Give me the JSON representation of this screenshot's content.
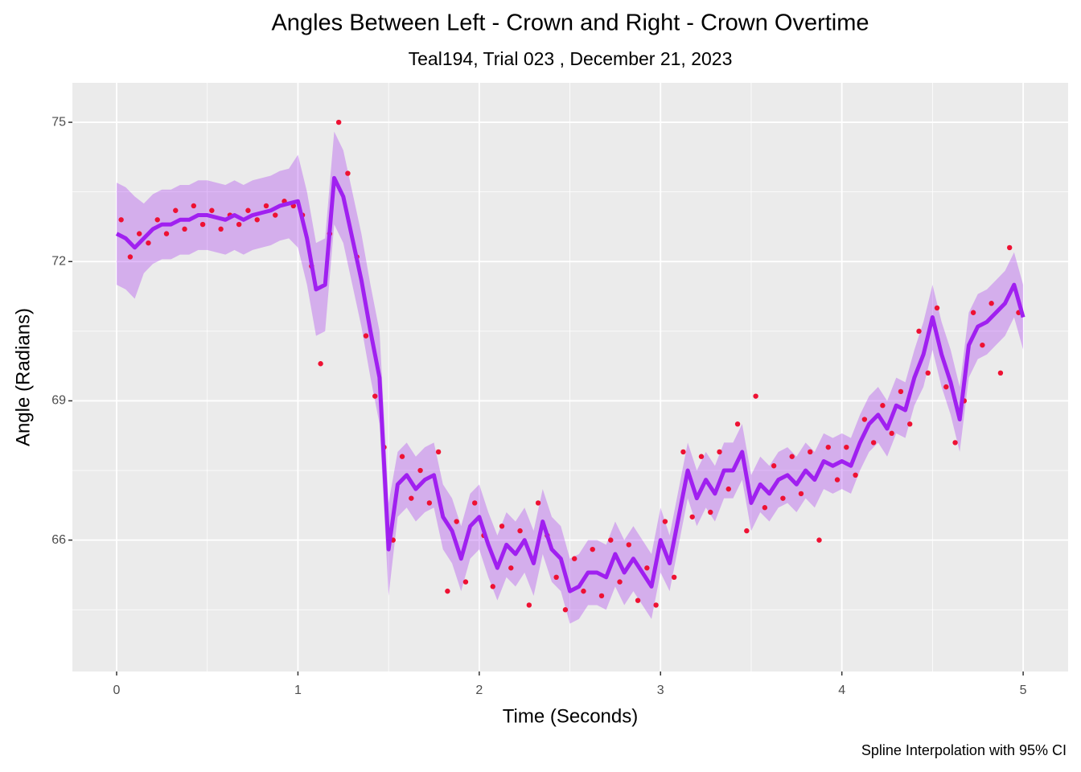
{
  "chart_data": {
    "type": "line",
    "title": "Angles Between Left - Crown and Right - Crown Overtime",
    "subtitle": "Teal194, Trial 023 , December 21, 2023",
    "caption": "Spline Interpolation with 95% CI",
    "x_label": "Time (Seconds)",
    "y_label": "Angle (Radians)",
    "xlim": [
      -0.244,
      5.248
    ],
    "ylim": [
      63.17,
      75.85
    ],
    "xticks": [
      0,
      1,
      2,
      3,
      4,
      5
    ],
    "yticks": [
      66,
      69,
      72,
      75
    ],
    "minor_xticks": [
      0.5,
      1.5,
      2.5,
      3.5,
      4.5
    ],
    "minor_yticks": [
      64.5,
      67.5,
      70.5,
      73.5
    ],
    "grid": true,
    "line": {
      "color": "#a020f0",
      "ci_color": "#a020f0",
      "x": [
        0,
        0.05,
        0.1,
        0.15,
        0.2,
        0.25,
        0.3,
        0.35,
        0.4,
        0.45,
        0.5,
        0.55,
        0.6,
        0.65,
        0.7,
        0.75,
        0.8,
        0.85,
        0.9,
        0.95,
        1,
        1.05,
        1.1,
        1.15,
        1.2,
        1.25,
        1.3,
        1.35,
        1.4,
        1.45,
        1.5,
        1.55,
        1.6,
        1.65,
        1.7,
        1.75,
        1.8,
        1.85,
        1.9,
        1.95,
        2,
        2.05,
        2.1,
        2.15,
        2.2,
        2.25,
        2.3,
        2.35,
        2.4,
        2.45,
        2.5,
        2.55,
        2.6,
        2.65,
        2.7,
        2.75,
        2.8,
        2.85,
        2.9,
        2.95,
        3,
        3.05,
        3.1,
        3.15,
        3.2,
        3.25,
        3.3,
        3.35,
        3.4,
        3.45,
        3.5,
        3.55,
        3.6,
        3.65,
        3.7,
        3.75,
        3.8,
        3.85,
        3.9,
        3.95,
        4,
        4.05,
        4.1,
        4.15,
        4.2,
        4.25,
        4.3,
        4.35,
        4.4,
        4.45,
        4.5,
        4.55,
        4.6,
        4.65,
        4.7,
        4.75,
        4.8,
        4.85,
        4.9,
        4.95,
        5
      ],
      "y": [
        72.6,
        72.5,
        72.3,
        72.5,
        72.7,
        72.8,
        72.8,
        72.9,
        72.9,
        73.0,
        73.0,
        72.95,
        72.9,
        73.0,
        72.9,
        73.0,
        73.05,
        73.1,
        73.2,
        73.25,
        73.3,
        72.5,
        71.4,
        71.5,
        73.8,
        73.4,
        72.5,
        71.6,
        70.5,
        69.5,
        65.8,
        67.2,
        67.4,
        67.1,
        67.3,
        67.4,
        66.5,
        66.2,
        65.6,
        66.3,
        66.5,
        65.9,
        65.4,
        65.9,
        65.7,
        66.0,
        65.5,
        66.4,
        65.8,
        65.6,
        64.9,
        65.0,
        65.3,
        65.3,
        65.2,
        65.7,
        65.3,
        65.6,
        65.3,
        65.0,
        66.0,
        65.5,
        66.5,
        67.5,
        66.9,
        67.3,
        67.0,
        67.5,
        67.5,
        67.9,
        66.8,
        67.2,
        67.0,
        67.3,
        67.4,
        67.2,
        67.5,
        67.3,
        67.7,
        67.6,
        67.7,
        67.6,
        68.1,
        68.5,
        68.7,
        68.4,
        68.9,
        68.8,
        69.5,
        70.0,
        70.8,
        70.0,
        69.4,
        68.6,
        70.2,
        70.6,
        70.7,
        70.9,
        71.1,
        71.5,
        70.8
      ],
      "ci_lower": [
        71.5,
        71.4,
        71.2,
        71.75,
        71.95,
        72.05,
        72.05,
        72.15,
        72.15,
        72.25,
        72.25,
        72.2,
        72.15,
        72.25,
        72.15,
        72.25,
        72.3,
        72.35,
        72.45,
        72.5,
        72.3,
        71.5,
        70.4,
        70.5,
        72.8,
        72.4,
        71.5,
        70.6,
        69.5,
        68.5,
        64.8,
        66.5,
        66.7,
        66.4,
        66.6,
        66.7,
        65.8,
        65.5,
        64.9,
        65.6,
        65.8,
        65.2,
        64.7,
        65.2,
        65.0,
        65.3,
        64.8,
        65.7,
        65.1,
        64.9,
        64.2,
        64.3,
        64.6,
        64.6,
        64.5,
        65.0,
        64.6,
        64.9,
        64.6,
        64.3,
        65.3,
        64.9,
        65.9,
        66.9,
        66.3,
        66.7,
        66.4,
        66.9,
        66.9,
        67.3,
        66.2,
        66.6,
        66.4,
        66.7,
        66.8,
        66.6,
        66.9,
        66.7,
        67.1,
        67.0,
        67.1,
        67.0,
        67.5,
        67.9,
        68.1,
        67.8,
        68.3,
        68.2,
        68.9,
        69.3,
        70.1,
        69.3,
        68.7,
        67.9,
        69.5,
        69.9,
        70.0,
        70.2,
        70.4,
        70.8,
        70.1
      ],
      "ci_upper": [
        73.7,
        73.6,
        73.4,
        73.25,
        73.45,
        73.55,
        73.55,
        73.65,
        73.65,
        73.75,
        73.75,
        73.7,
        73.65,
        73.75,
        73.65,
        73.75,
        73.8,
        73.85,
        73.95,
        74.0,
        74.3,
        73.5,
        72.4,
        72.5,
        74.8,
        74.4,
        73.5,
        72.6,
        71.5,
        70.5,
        66.8,
        67.9,
        68.1,
        67.8,
        68.0,
        68.1,
        67.2,
        66.9,
        66.3,
        67.0,
        67.2,
        66.6,
        66.1,
        66.6,
        66.4,
        66.7,
        66.2,
        67.1,
        66.5,
        66.3,
        65.6,
        65.7,
        66.0,
        66.0,
        65.9,
        66.4,
        66.0,
        66.3,
        66.0,
        65.7,
        66.7,
        66.1,
        67.1,
        68.1,
        67.5,
        67.9,
        67.6,
        68.1,
        68.1,
        68.5,
        67.4,
        67.8,
        67.6,
        67.9,
        68.0,
        67.8,
        68.1,
        67.9,
        68.3,
        68.2,
        68.3,
        68.2,
        68.7,
        69.1,
        69.3,
        69.0,
        69.5,
        69.4,
        70.1,
        70.7,
        71.5,
        70.7,
        70.1,
        69.3,
        70.9,
        71.3,
        71.4,
        71.6,
        71.8,
        72.2,
        71.5
      ]
    },
    "points": {
      "color": "#ee1133",
      "x": [
        0.025,
        0.075,
        0.125,
        0.175,
        0.225,
        0.275,
        0.325,
        0.375,
        0.425,
        0.475,
        0.525,
        0.575,
        0.625,
        0.675,
        0.725,
        0.775,
        0.825,
        0.875,
        0.925,
        0.975,
        1.025,
        1.075,
        1.125,
        1.175,
        1.225,
        1.275,
        1.325,
        1.375,
        1.425,
        1.475,
        1.525,
        1.575,
        1.625,
        1.675,
        1.725,
        1.775,
        1.825,
        1.875,
        1.925,
        1.975,
        2.025,
        2.075,
        2.125,
        2.175,
        2.225,
        2.275,
        2.325,
        2.375,
        2.425,
        2.475,
        2.525,
        2.575,
        2.625,
        2.675,
        2.725,
        2.775,
        2.825,
        2.875,
        2.925,
        2.975,
        3.025,
        3.075,
        3.125,
        3.175,
        3.225,
        3.275,
        3.325,
        3.375,
        3.425,
        3.475,
        3.525,
        3.575,
        3.625,
        3.675,
        3.725,
        3.775,
        3.825,
        3.875,
        3.925,
        3.975,
        4.025,
        4.075,
        4.125,
        4.175,
        4.225,
        4.275,
        4.325,
        4.375,
        4.425,
        4.475,
        4.525,
        4.575,
        4.625,
        4.675,
        4.725,
        4.775,
        4.825,
        4.875,
        4.925,
        4.975
      ],
      "y": [
        72.9,
        72.1,
        72.6,
        72.4,
        72.9,
        72.6,
        73.1,
        72.7,
        73.2,
        72.8,
        73.1,
        72.7,
        73.0,
        72.8,
        73.1,
        72.9,
        73.2,
        73.0,
        73.3,
        73.2,
        73.0,
        71.9,
        69.8,
        72.6,
        75.0,
        73.9,
        72.1,
        70.4,
        69.1,
        68.0,
        66.0,
        67.8,
        66.9,
        67.5,
        66.8,
        67.9,
        64.9,
        66.4,
        65.1,
        66.8,
        66.1,
        65.0,
        66.3,
        65.4,
        66.2,
        64.6,
        66.8,
        66.1,
        65.2,
        64.5,
        65.6,
        64.9,
        65.8,
        64.8,
        66.0,
        65.1,
        65.9,
        64.7,
        65.4,
        64.6,
        66.4,
        65.2,
        67.9,
        66.5,
        67.8,
        66.6,
        67.9,
        67.1,
        68.5,
        66.2,
        69.1,
        66.7,
        67.6,
        66.9,
        67.8,
        67.0,
        67.9,
        66.0,
        68.0,
        67.3,
        68.0,
        67.4,
        68.6,
        68.1,
        68.9,
        68.3,
        69.2,
        68.5,
        70.5,
        69.6,
        71.0,
        69.3,
        68.1,
        69.0,
        70.9,
        70.2,
        71.1,
        69.6,
        72.3,
        70.9
      ]
    }
  }
}
